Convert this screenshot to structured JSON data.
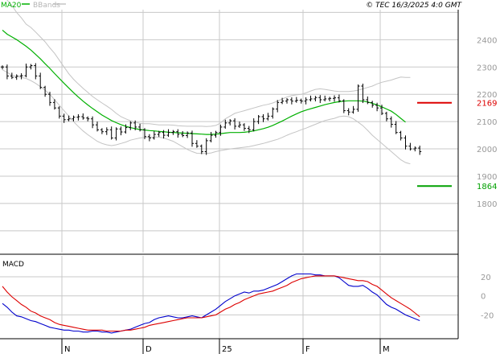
{
  "header": {
    "legend_ma": "MA20",
    "legend_bb": "BBands",
    "copyright": "© TEC 16/3/2025 4:0 GMT"
  },
  "macd_label": "MACD",
  "colors": {
    "background": "#ffffff",
    "grid": "#c8c8c8",
    "frame": "#000000",
    "ma20": "#00b000",
    "bbands": "#c4c4c4",
    "price": "#000000",
    "resistance": "#dd0000",
    "support": "#00a000",
    "macd": "#0000cc",
    "signal": "#dd0000"
  },
  "chart_data": [
    {
      "type": "line",
      "subtype": "ohlc",
      "title": "",
      "x_labels": [
        "N",
        "D",
        "25",
        "F",
        "M"
      ],
      "y_ticks": [
        1800,
        1900,
        2000,
        2100,
        2200,
        2300,
        2400
      ],
      "ylim": [
        1620,
        2510
      ],
      "grid": true,
      "legend": "top-left",
      "annotations": [
        {
          "label": "2169",
          "value": 2169,
          "kind": "resistance"
        },
        {
          "label": "1864",
          "value": 1864,
          "kind": "support"
        }
      ],
      "price": [
        2300,
        2267,
        2262,
        2267,
        2268,
        2300,
        2305,
        2267,
        2225,
        2200,
        2170,
        2150,
        2120,
        2107,
        2110,
        2116,
        2118,
        2113,
        2110,
        2088,
        2070,
        2063,
        2070,
        2040,
        2073,
        2062,
        2078,
        2095,
        2080,
        2070,
        2045,
        2040,
        2053,
        2060,
        2050,
        2060,
        2063,
        2053,
        2049,
        2058,
        2020,
        2010,
        1990,
        2030,
        2050,
        2060,
        2080,
        2095,
        2103,
        2083,
        2088,
        2075,
        2070,
        2100,
        2118,
        2110,
        2120,
        2146,
        2170,
        2175,
        2180,
        2175,
        2178,
        2175,
        2180,
        2183,
        2188,
        2180,
        2183,
        2185,
        2187,
        2176,
        2140,
        2135,
        2145,
        2230,
        2180,
        2170,
        2160,
        2150,
        2130,
        2110,
        2090,
        2060,
        2040,
        2010,
        2000,
        2003,
        1990
      ],
      "series": [
        {
          "name": "MA20",
          "start_index": 0,
          "values": [
            2435,
            2420,
            2410,
            2400,
            2388,
            2376,
            2362,
            2346,
            2330,
            2312,
            2295,
            2276,
            2258,
            2240,
            2223,
            2206,
            2190,
            2175,
            2161,
            2148,
            2136,
            2124,
            2114,
            2104,
            2096,
            2089,
            2083,
            2078,
            2074,
            2071,
            2069,
            2067,
            2066,
            2064,
            2063,
            2061,
            2060,
            2059,
            2058,
            2057,
            2056,
            2055,
            2054,
            2053,
            2053,
            2054,
            2056,
            2058,
            2060,
            2060,
            2060,
            2061,
            2063,
            2066,
            2070,
            2074,
            2079,
            2086,
            2094,
            2102,
            2111,
            2120,
            2128,
            2136,
            2142,
            2147,
            2152,
            2157,
            2162,
            2166,
            2170,
            2173,
            2175,
            2176,
            2176,
            2176,
            2175,
            2172,
            2167,
            2161,
            2154,
            2146,
            2138,
            2126,
            2112,
            2098
          ]
        },
        {
          "name": "BBands upper",
          "start_index": 0,
          "values": [
            2565,
            2545,
            2525,
            2500,
            2480,
            2457,
            2445,
            2428,
            2410,
            2392,
            2370,
            2350,
            2325,
            2300,
            2275,
            2255,
            2238,
            2222,
            2207,
            2192,
            2180,
            2168,
            2157,
            2145,
            2130,
            2118,
            2110,
            2103,
            2098,
            2094,
            2092,
            2092,
            2090,
            2088,
            2088,
            2088,
            2087,
            2085,
            2084,
            2083,
            2083,
            2083,
            2083,
            2082,
            2083,
            2086,
            2095,
            2110,
            2120,
            2130,
            2135,
            2140,
            2145,
            2150,
            2155,
            2160,
            2163,
            2168,
            2175,
            2183,
            2190,
            2195,
            2198,
            2200,
            2205,
            2212,
            2218,
            2220,
            2218,
            2215,
            2212,
            2210,
            2210,
            2210,
            2212,
            2215,
            2220,
            2225,
            2230,
            2238,
            2244,
            2248,
            2252,
            2258,
            2263,
            2262,
            2262
          ]
        },
        {
          "name": "BBands lower",
          "start_index": 0,
          "values": [
            2290,
            2280,
            2270,
            2265,
            2262,
            2258,
            2250,
            2240,
            2228,
            2215,
            2200,
            2180,
            2160,
            2140,
            2120,
            2100,
            2082,
            2066,
            2052,
            2040,
            2028,
            2020,
            2015,
            2012,
            2015,
            2020,
            2025,
            2032,
            2036,
            2040,
            2042,
            2043,
            2044,
            2043,
            2040,
            2034,
            2028,
            2018,
            2008,
            1998,
            1990,
            1984,
            1983,
            1983,
            1985,
            1990,
            1994,
            1997,
            2000,
            2002,
            2004,
            2006,
            2008,
            2012,
            2016,
            2020,
            2025,
            2030,
            2035,
            2042,
            2050,
            2057,
            2063,
            2070,
            2076,
            2083,
            2090,
            2097,
            2104,
            2108,
            2112,
            2118,
            2120,
            2118,
            2110,
            2098,
            2085,
            2068,
            2050,
            2035,
            2020,
            2005,
            1990,
            1975,
            1960,
            1950,
            1945
          ]
        }
      ]
    },
    {
      "type": "line",
      "title": "MACD",
      "y_ticks": [
        -20,
        0,
        20
      ],
      "y_tick_labels": [
        "-20",
        "0",
        "20"
      ],
      "ylim": [
        -45,
        42
      ],
      "series": [
        {
          "name": "MACD",
          "start_index": 0,
          "values": [
            -8,
            -12,
            -17,
            -21,
            -22,
            -24,
            -26,
            -27,
            -29,
            -31,
            -33,
            -34,
            -35,
            -36,
            -36,
            -37,
            -37,
            -38,
            -38,
            -37,
            -37,
            -38,
            -38,
            -39,
            -38,
            -37,
            -36,
            -35,
            -33,
            -31,
            -29,
            -28,
            -25,
            -23,
            -22,
            -21,
            -22,
            -23,
            -23,
            -22,
            -21,
            -22,
            -23,
            -20,
            -17,
            -14,
            -10,
            -6,
            -3,
            0,
            2,
            4,
            3,
            5,
            5,
            6,
            8,
            10,
            12,
            15,
            18,
            21,
            23,
            23,
            23,
            23,
            22,
            22,
            21,
            21,
            21,
            19,
            15,
            11,
            10,
            10,
            11,
            8,
            4,
            1,
            -4,
            -9,
            -12,
            -14,
            -17,
            -20,
            -22,
            -24,
            -26
          ]
        },
        {
          "name": "Signal",
          "start_index": 0,
          "values": [
            10,
            4,
            -1,
            -5,
            -9,
            -12,
            -16,
            -18,
            -21,
            -23,
            -25,
            -28,
            -30,
            -31,
            -32,
            -33,
            -34,
            -35,
            -36,
            -36,
            -36,
            -36,
            -37,
            -37,
            -37,
            -37,
            -36,
            -36,
            -35,
            -34,
            -33,
            -31,
            -30,
            -29,
            -28,
            -27,
            -26,
            -25,
            -24,
            -23,
            -23,
            -23,
            -23,
            -22,
            -21,
            -20,
            -17,
            -14,
            -12,
            -9,
            -7,
            -4,
            -2,
            0,
            2,
            3,
            4,
            5,
            7,
            9,
            11,
            14,
            16,
            18,
            19,
            20,
            21,
            21,
            21,
            21,
            21,
            20,
            19,
            18,
            17,
            16,
            16,
            15,
            12,
            10,
            6,
            2,
            -2,
            -5,
            -8,
            -11,
            -14,
            -18,
            -22
          ]
        }
      ]
    }
  ]
}
